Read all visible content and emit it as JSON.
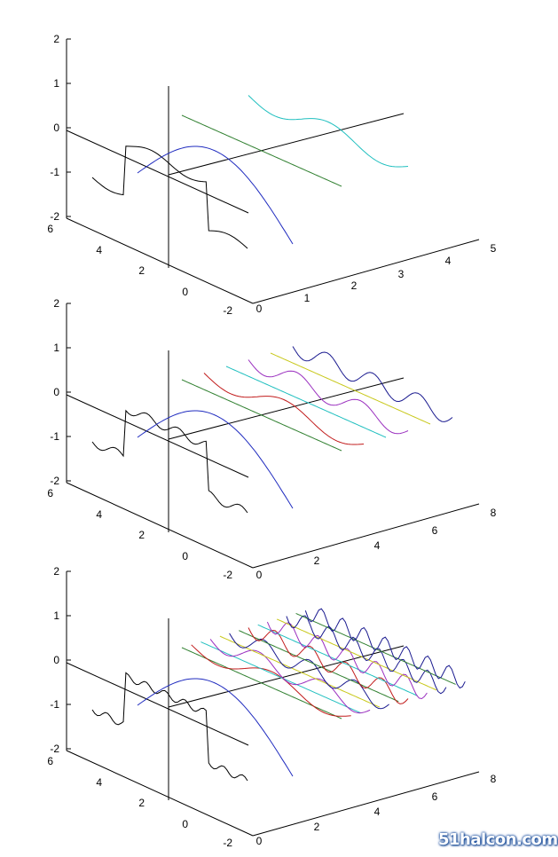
{
  "watermark": "51halcon.com",
  "colors": {
    "axes": "#000000",
    "square_wave": "#000000",
    "fundamental": "#1f2bbf",
    "harmonics": [
      "#c11b1b",
      "#1fbfbf",
      "#9a2fbf",
      "#c8c81a",
      "#1a1a8f",
      "#2f7f2f",
      "#8a8a3f"
    ]
  },
  "chart_data": [
    {
      "type": "line",
      "view": "3d",
      "zlim": [
        -2,
        2
      ],
      "z_ticks": [
        "2",
        "1",
        "0",
        "-1",
        "-2"
      ],
      "y_ticks": [
        "6",
        "4",
        "2",
        "0",
        "-2"
      ],
      "x_ticks": [
        "0",
        "1",
        "2",
        "3",
        "4",
        "5"
      ],
      "harmonic_count": 2,
      "harmonic_colors": [
        "#2f7f2f",
        "#1fbfbf"
      ]
    },
    {
      "type": "line",
      "view": "3d",
      "zlim": [
        -2,
        2
      ],
      "z_ticks": [
        "2",
        "1",
        "0",
        "-1",
        "-2"
      ],
      "y_ticks": [
        "6",
        "4",
        "2",
        "0",
        "-2"
      ],
      "x_ticks": [
        "0",
        "2",
        "4",
        "6",
        "8"
      ],
      "harmonic_count": 6,
      "harmonic_colors": [
        "#2f7f2f",
        "#c11b1b",
        "#1fbfbf",
        "#9a2fbf",
        "#c8c81a",
        "#1a1a8f"
      ]
    },
    {
      "type": "line",
      "view": "3d",
      "zlim": [
        -2,
        2
      ],
      "z_ticks": [
        "2",
        "1",
        "0",
        "-1",
        "-2"
      ],
      "y_ticks": [
        "6",
        "4",
        "2",
        "0",
        "-2"
      ],
      "x_ticks": [
        "0",
        "2",
        "4",
        "6",
        "8"
      ],
      "harmonic_count": 14,
      "harmonic_colors": [
        "#2f7f2f",
        "#c11b1b",
        "#1fbfbf",
        "#9a2fbf",
        "#c8c81a",
        "#1a1a8f",
        "#2f7f2f",
        "#c11b1b",
        "#1fbfbf",
        "#9a2fbf",
        "#c8c81a",
        "#1a1a8f",
        "#2f7f2f",
        "#1a1a8f"
      ]
    }
  ]
}
